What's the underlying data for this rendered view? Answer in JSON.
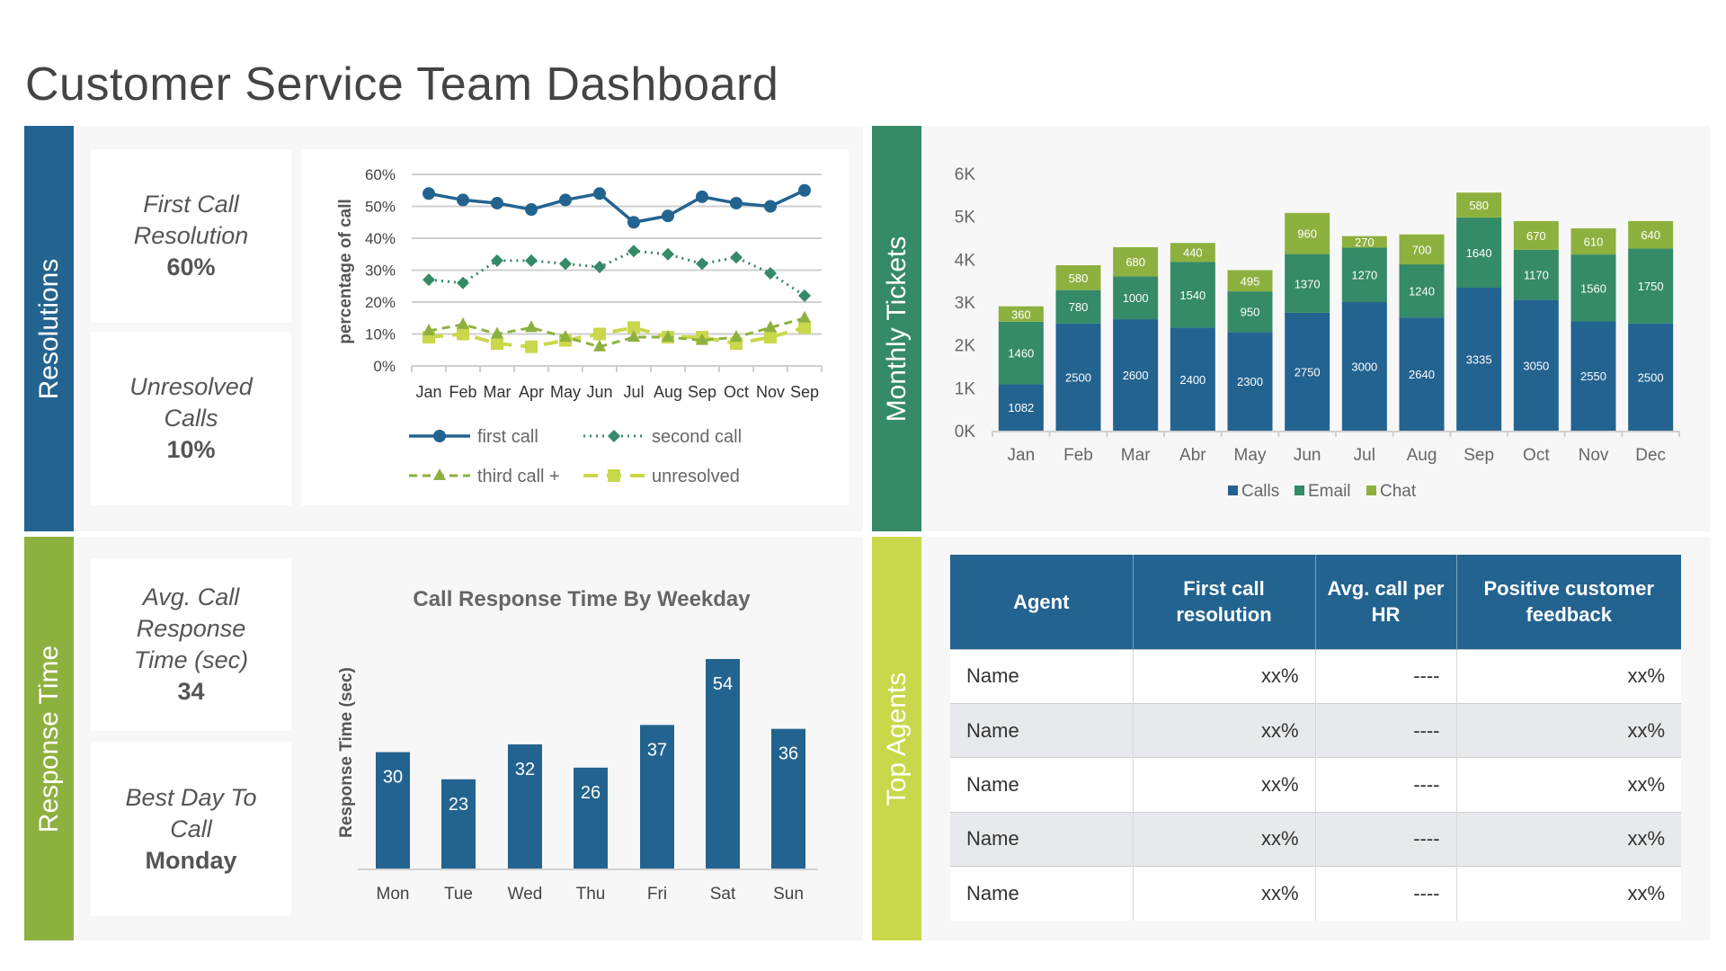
{
  "title": "Customer Service Team Dashboard",
  "colors": {
    "blue": "#236390",
    "green": "#358a67",
    "light_green": "#8db13f",
    "lime": "#c9d84a",
    "panel": "#f7f7f7"
  },
  "sections": {
    "resolutions": "Resolutions",
    "response_time": "Response Time",
    "monthly_tickets": "Monthly Tickets",
    "top_agents": "Top Agents"
  },
  "kpis": {
    "first_call": {
      "label": "First Call Resolution",
      "value": "60%"
    },
    "unresolved": {
      "label": "Unresolved Calls",
      "value": "10%"
    },
    "avg_response": {
      "label": "Avg. Call Response Time (sec)",
      "value": "34"
    },
    "best_day": {
      "label": "Best Day To Call",
      "value": "Monday"
    }
  },
  "chart_data": [
    {
      "type": "line",
      "title": "",
      "ylabel": "percentage of call",
      "ylim": [
        0,
        60
      ],
      "yticks": [
        "0%",
        "10%",
        "20%",
        "30%",
        "40%",
        "50%",
        "60%"
      ],
      "categories": [
        "Jan",
        "Feb",
        "Mar",
        "Apr",
        "May",
        "Jun",
        "Jul",
        "Aug",
        "Sep",
        "Oct",
        "Nov",
        "Sep"
      ],
      "grid": true,
      "legend": "bottom",
      "series": [
        {
          "name": "first call",
          "values": [
            54,
            52,
            51,
            49,
            52,
            54,
            45,
            47,
            53,
            51,
            50,
            55
          ]
        },
        {
          "name": "second call",
          "values": [
            27,
            26,
            33,
            33,
            32,
            31,
            36,
            35,
            32,
            34,
            29,
            22
          ]
        },
        {
          "name": "third call +",
          "values": [
            11,
            13,
            10,
            12,
            9,
            6,
            9,
            9,
            8,
            9,
            12,
            15
          ]
        },
        {
          "name": "unresolved",
          "values": [
            9,
            10,
            7,
            6,
            8,
            10,
            12,
            9,
            9,
            7,
            9,
            12
          ]
        }
      ]
    },
    {
      "type": "bar",
      "stacked": true,
      "title": "",
      "ylim": [
        0,
        6000
      ],
      "yticks": [
        "0K",
        "1K",
        "2K",
        "3K",
        "4K",
        "5K",
        "6K"
      ],
      "categories": [
        "Jan",
        "Feb",
        "Mar",
        "Abr",
        "May",
        "Jun",
        "Jul",
        "Aug",
        "Sep",
        "Oct",
        "Nov",
        "Dec"
      ],
      "legend": "bottom",
      "series": [
        {
          "name": "Calls",
          "values": [
            1082,
            2500,
            2600,
            2400,
            2300,
            2750,
            3000,
            2640,
            3335,
            3050,
            2550,
            2500
          ]
        },
        {
          "name": "Email",
          "values": [
            1460,
            780,
            1000,
            1540,
            950,
            1370,
            1270,
            1240,
            1640,
            1170,
            1560,
            1750
          ]
        },
        {
          "name": "Chat",
          "values": [
            360,
            580,
            680,
            440,
            495,
            960,
            270,
            700,
            580,
            670,
            610,
            640
          ]
        }
      ]
    },
    {
      "type": "bar",
      "title": "Call Response Time By Weekday",
      "ylabel": "Response Time (sec)",
      "ylim": [
        0,
        60
      ],
      "categories": [
        "Mon",
        "Tue",
        "Wed",
        "Thu",
        "Fri",
        "Sat",
        "Sun"
      ],
      "values": [
        30,
        23,
        32,
        26,
        37,
        54,
        36
      ]
    }
  ],
  "table": {
    "headers": [
      "Agent",
      "First call resolution",
      "Avg. call per HR",
      "Positive customer feedback"
    ],
    "rows": [
      [
        "Name",
        "xx%",
        "----",
        "xx%"
      ],
      [
        "Name",
        "xx%",
        "----",
        "xx%"
      ],
      [
        "Name",
        "xx%",
        "----",
        "xx%"
      ],
      [
        "Name",
        "xx%",
        "----",
        "xx%"
      ],
      [
        "Name",
        "xx%",
        "----",
        "xx%"
      ]
    ]
  }
}
